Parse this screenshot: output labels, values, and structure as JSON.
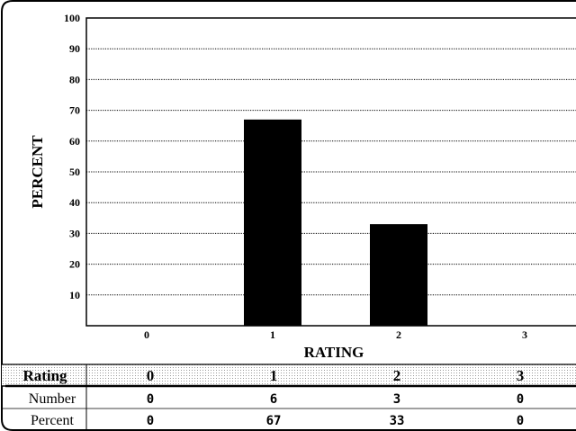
{
  "chart_data": {
    "type": "bar",
    "categories": [
      "0",
      "1",
      "2",
      "3"
    ],
    "values": [
      0,
      67,
      33,
      0
    ],
    "xlabel": "RATING",
    "ylabel": "PERCENT",
    "ylim": [
      0,
      100
    ],
    "yticks": [
      10,
      20,
      30,
      40,
      50,
      60,
      70,
      80,
      90,
      100
    ],
    "grid": true,
    "bar_color": "#000000"
  },
  "table": {
    "header_label": "Rating",
    "headers": [
      "0",
      "1",
      "2",
      "3"
    ],
    "rows": [
      {
        "label": "Number",
        "values": [
          "0",
          "6",
          "3",
          "0"
        ]
      },
      {
        "label": "Percent",
        "values": [
          "0",
          "67",
          "33",
          "0"
        ]
      }
    ]
  }
}
